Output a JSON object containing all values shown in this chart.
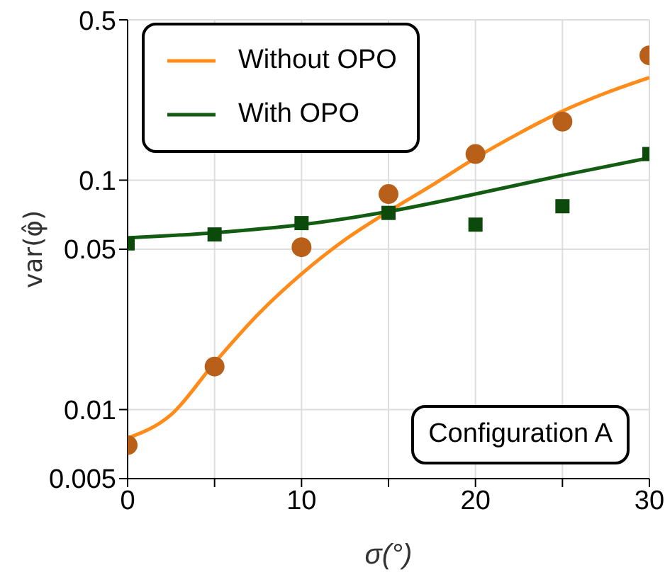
{
  "chart_data": {
    "type": "line",
    "xlabel": "σ(°)",
    "ylabel": "var(φ̂)",
    "xlim": [
      0,
      30
    ],
    "xticks": [
      0,
      {
        "value": 5,
        "label": null
      },
      10,
      {
        "value": 15,
        "label": null
      },
      20,
      {
        "value": 25,
        "label": null
      },
      30
    ],
    "ylim": [
      0.005,
      0.5
    ],
    "yticks": [
      0.005,
      0.01,
      0.05,
      0.1,
      0.5
    ],
    "log": "y",
    "grid": true,
    "legend": "top left",
    "annotations": [
      "Configuration A"
    ],
    "series": [
      {
        "name": "Without OPO",
        "color": "#ff8c1a",
        "marker": "none",
        "line_style": "solid",
        "x": [
          0,
          2.5,
          5,
          7.5,
          10,
          12.5,
          15,
          17.5,
          20,
          22.5,
          25,
          27.5,
          30
        ],
        "values": [
          0.0075,
          0.0095,
          0.016,
          0.026,
          0.039,
          0.055,
          0.073,
          0.095,
          0.125,
          0.16,
          0.2,
          0.24,
          0.28
        ]
      },
      {
        "name": "With OPO",
        "color": "#125d12",
        "marker": "none",
        "line_style": "solid",
        "x": [
          0,
          5,
          10,
          15,
          20,
          25,
          30
        ],
        "values": [
          0.056,
          0.059,
          0.064,
          0.073,
          0.087,
          0.105,
          0.125
        ]
      },
      {
        "type": "scatter",
        "color": "#b8601a",
        "marker": "circle",
        "x": [
          0,
          5,
          10,
          15,
          20,
          25,
          30
        ],
        "values": [
          0.007,
          0.0154,
          0.051,
          0.087,
          0.13,
          0.18,
          0.35
        ]
      },
      {
        "type": "scatter",
        "color": "#0b4a0b",
        "marker": "square",
        "x": [
          0,
          5,
          10,
          15,
          20,
          25,
          30
        ],
        "values": [
          0.053,
          0.058,
          0.065,
          0.072,
          0.064,
          0.077,
          0.13
        ]
      }
    ]
  }
}
